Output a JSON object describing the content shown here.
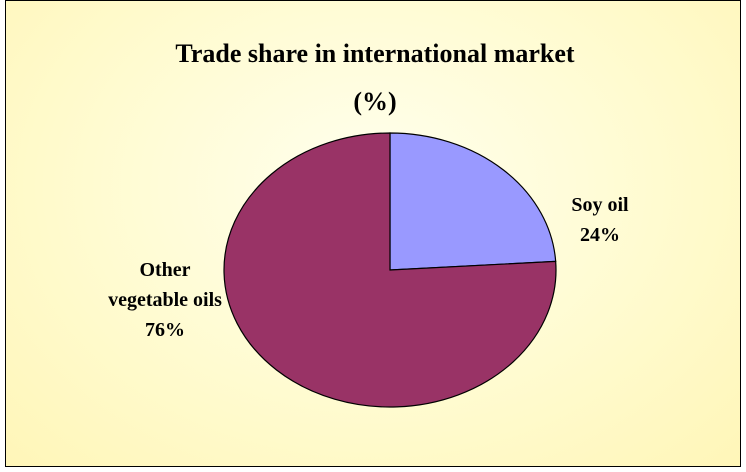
{
  "chart_data": {
    "type": "pie",
    "title": "Trade share in international market (%)",
    "categories": [
      "Soy oil",
      "Other vegetable oils"
    ],
    "values": [
      24,
      76
    ],
    "value_labels": [
      "24%",
      "76%"
    ],
    "colors": [
      "#9999ff",
      "#993366"
    ]
  }
}
